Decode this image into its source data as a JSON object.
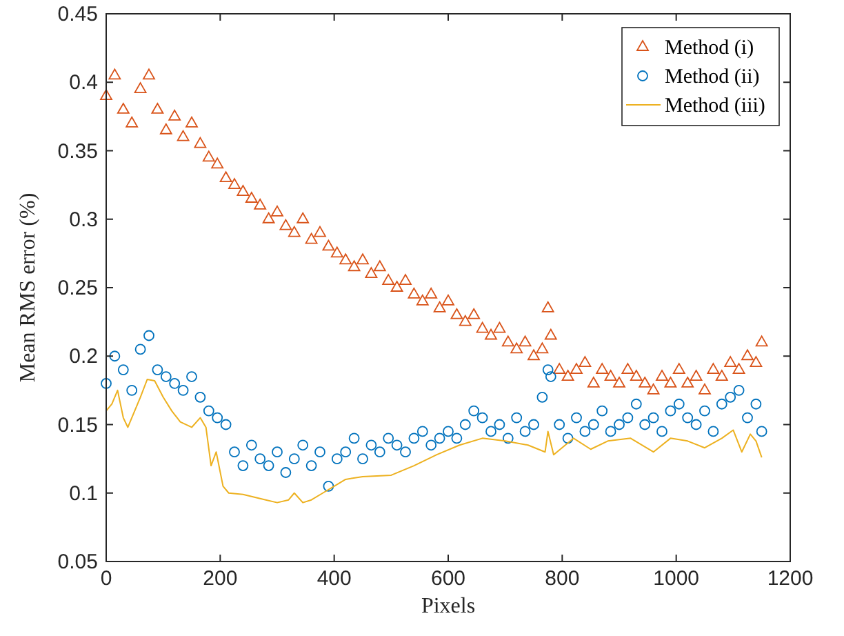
{
  "chart_data": {
    "type": "scatter",
    "xlabel": "Pixels",
    "ylabel": "Mean RMS error (%)",
    "xlim": [
      0,
      1200
    ],
    "ylim": [
      0.05,
      0.45
    ],
    "xticks": [
      0,
      200,
      400,
      600,
      800,
      1000,
      1200
    ],
    "yticks": [
      0.05,
      0.1,
      0.15,
      0.2,
      0.25,
      0.3,
      0.35,
      0.4,
      0.45
    ],
    "grid": false,
    "legend": "top right",
    "series": [
      {
        "name": "Method (i)",
        "color": "#d95319",
        "marker": "triangle",
        "x": [
          0,
          15,
          30,
          45,
          60,
          75,
          90,
          105,
          120,
          135,
          150,
          165,
          180,
          195,
          210,
          225,
          240,
          255,
          270,
          285,
          300,
          315,
          330,
          345,
          360,
          375,
          390,
          405,
          420,
          435,
          450,
          465,
          480,
          495,
          510,
          525,
          540,
          555,
          570,
          585,
          600,
          615,
          630,
          645,
          660,
          675,
          690,
          705,
          720,
          735,
          750,
          765,
          775,
          780,
          795,
          810,
          825,
          840,
          855,
          870,
          885,
          900,
          915,
          930,
          945,
          960,
          975,
          990,
          1005,
          1020,
          1035,
          1050,
          1065,
          1080,
          1095,
          1110,
          1125,
          1140,
          1150
        ],
        "values": [
          0.39,
          0.405,
          0.38,
          0.37,
          0.395,
          0.405,
          0.38,
          0.365,
          0.375,
          0.36,
          0.37,
          0.355,
          0.345,
          0.34,
          0.33,
          0.325,
          0.32,
          0.315,
          0.31,
          0.3,
          0.305,
          0.295,
          0.29,
          0.3,
          0.285,
          0.29,
          0.28,
          0.275,
          0.27,
          0.265,
          0.27,
          0.26,
          0.265,
          0.255,
          0.25,
          0.255,
          0.245,
          0.24,
          0.245,
          0.235,
          0.24,
          0.23,
          0.225,
          0.23,
          0.22,
          0.215,
          0.22,
          0.21,
          0.205,
          0.21,
          0.2,
          0.205,
          0.235,
          0.215,
          0.19,
          0.185,
          0.19,
          0.195,
          0.18,
          0.19,
          0.185,
          0.18,
          0.19,
          0.185,
          0.18,
          0.175,
          0.185,
          0.18,
          0.19,
          0.18,
          0.185,
          0.175,
          0.19,
          0.185,
          0.195,
          0.19,
          0.2,
          0.195,
          0.21
        ]
      },
      {
        "name": "Method (ii)",
        "color": "#0072bd",
        "marker": "circle",
        "x": [
          0,
          15,
          30,
          45,
          60,
          75,
          90,
          105,
          120,
          135,
          150,
          165,
          180,
          195,
          210,
          225,
          240,
          255,
          270,
          285,
          300,
          315,
          330,
          345,
          360,
          375,
          390,
          405,
          420,
          435,
          450,
          465,
          480,
          495,
          510,
          525,
          540,
          555,
          570,
          585,
          600,
          615,
          630,
          645,
          660,
          675,
          690,
          705,
          720,
          735,
          750,
          765,
          775,
          780,
          795,
          810,
          825,
          840,
          855,
          870,
          885,
          900,
          915,
          930,
          945,
          960,
          975,
          990,
          1005,
          1020,
          1035,
          1050,
          1065,
          1080,
          1095,
          1110,
          1125,
          1140,
          1150
        ],
        "values": [
          0.18,
          0.2,
          0.19,
          0.175,
          0.205,
          0.215,
          0.19,
          0.185,
          0.18,
          0.175,
          0.185,
          0.17,
          0.16,
          0.155,
          0.15,
          0.13,
          0.12,
          0.135,
          0.125,
          0.12,
          0.13,
          0.115,
          0.125,
          0.135,
          0.12,
          0.13,
          0.105,
          0.125,
          0.13,
          0.14,
          0.125,
          0.135,
          0.13,
          0.14,
          0.135,
          0.13,
          0.14,
          0.145,
          0.135,
          0.14,
          0.145,
          0.14,
          0.15,
          0.16,
          0.155,
          0.145,
          0.15,
          0.14,
          0.155,
          0.145,
          0.15,
          0.17,
          0.19,
          0.185,
          0.15,
          0.14,
          0.155,
          0.145,
          0.15,
          0.16,
          0.145,
          0.15,
          0.155,
          0.165,
          0.15,
          0.155,
          0.145,
          0.16,
          0.165,
          0.155,
          0.15,
          0.16,
          0.145,
          0.165,
          0.17,
          0.175,
          0.155,
          0.165,
          0.145
        ]
      },
      {
        "name": "Method (iii)",
        "color": "#edb120",
        "type": "line",
        "marker": "none",
        "line_style": "solid",
        "x": [
          0,
          10,
          20,
          30,
          38,
          50,
          60,
          72,
          85,
          100,
          115,
          130,
          150,
          165,
          175,
          184,
          193,
          205,
          215,
          240,
          260,
          280,
          300,
          320,
          330,
          345,
          360,
          380,
          400,
          420,
          450,
          500,
          540,
          580,
          620,
          660,
          700,
          740,
          770,
          775,
          785,
          820,
          850,
          880,
          920,
          960,
          990,
          1020,
          1050,
          1080,
          1100,
          1115,
          1130,
          1140,
          1150
        ],
        "values": [
          0.16,
          0.165,
          0.175,
          0.155,
          0.148,
          0.16,
          0.17,
          0.183,
          0.182,
          0.17,
          0.16,
          0.152,
          0.148,
          0.155,
          0.148,
          0.12,
          0.13,
          0.105,
          0.1,
          0.099,
          0.097,
          0.095,
          0.093,
          0.095,
          0.1,
          0.093,
          0.095,
          0.1,
          0.105,
          0.11,
          0.112,
          0.113,
          0.12,
          0.128,
          0.135,
          0.14,
          0.138,
          0.135,
          0.13,
          0.145,
          0.128,
          0.14,
          0.132,
          0.138,
          0.14,
          0.13,
          0.14,
          0.138,
          0.133,
          0.14,
          0.146,
          0.13,
          0.143,
          0.138,
          0.126
        ]
      }
    ]
  }
}
